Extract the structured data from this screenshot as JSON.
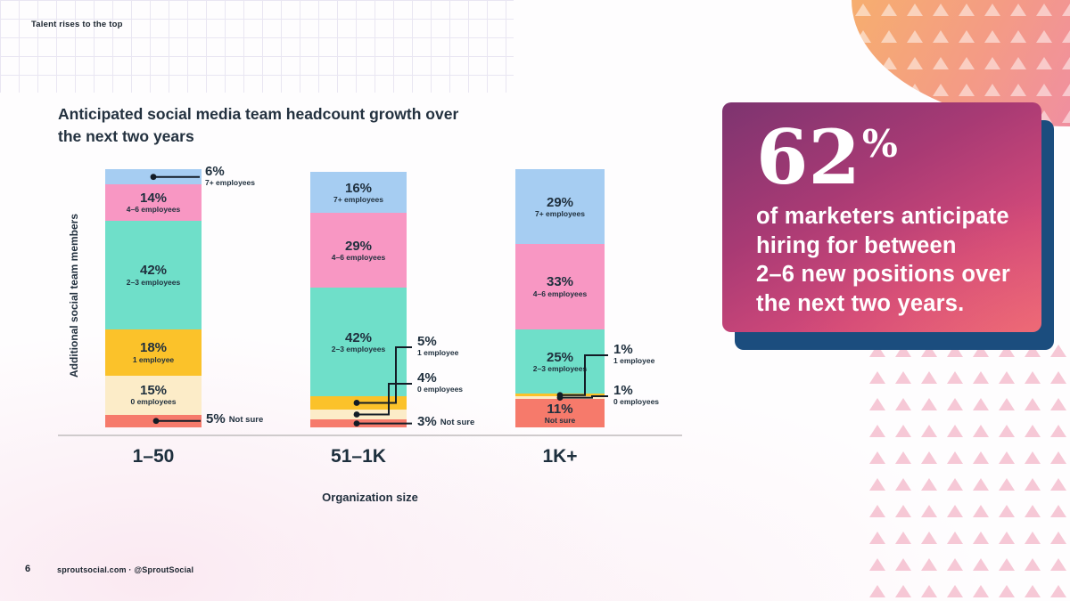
{
  "page": {
    "eyebrow": "Talent rises to the top",
    "page_number": "6",
    "footer": "sproutsocial.com  ·  @SproutSocial"
  },
  "chart_data": {
    "type": "bar",
    "variant": "stacked-vertical",
    "title": "Anticipated social media team headcount growth over the next two years",
    "xlabel": "Organization size",
    "ylabel": "Additional social team members",
    "unit": "%",
    "ylim": [
      0,
      100
    ],
    "grid": false,
    "legend": "inline-segment-labels",
    "categories": [
      "1–50",
      "51–1K",
      "1K+"
    ],
    "series": [
      {
        "name": "7+ employees",
        "color": "#a6cdf2",
        "values": [
          6,
          16,
          29
        ]
      },
      {
        "name": "4–6 employees",
        "color": "#f897c3",
        "values": [
          14,
          29,
          33
        ]
      },
      {
        "name": "2–3 employees",
        "color": "#6fdfc9",
        "values": [
          42,
          42,
          25
        ]
      },
      {
        "name": "1 employee",
        "color": "#fbc22a",
        "values": [
          18,
          5,
          1
        ]
      },
      {
        "name": "0 employees",
        "color": "#fcecc8",
        "values": [
          15,
          4,
          1
        ]
      },
      {
        "name": "Not sure",
        "color": "#f67a6b",
        "values": [
          5,
          3,
          11
        ]
      }
    ]
  },
  "stat_card": {
    "stat": "62",
    "stat_suffix": "%",
    "lines": [
      "of marketers anticipate",
      "hiring for between",
      "2–6 new positions over",
      "the next two years."
    ]
  },
  "colors": {
    "card_shadow": "#1b4d7e",
    "text_navy": "#20303e",
    "leader_line": "#131c26"
  }
}
